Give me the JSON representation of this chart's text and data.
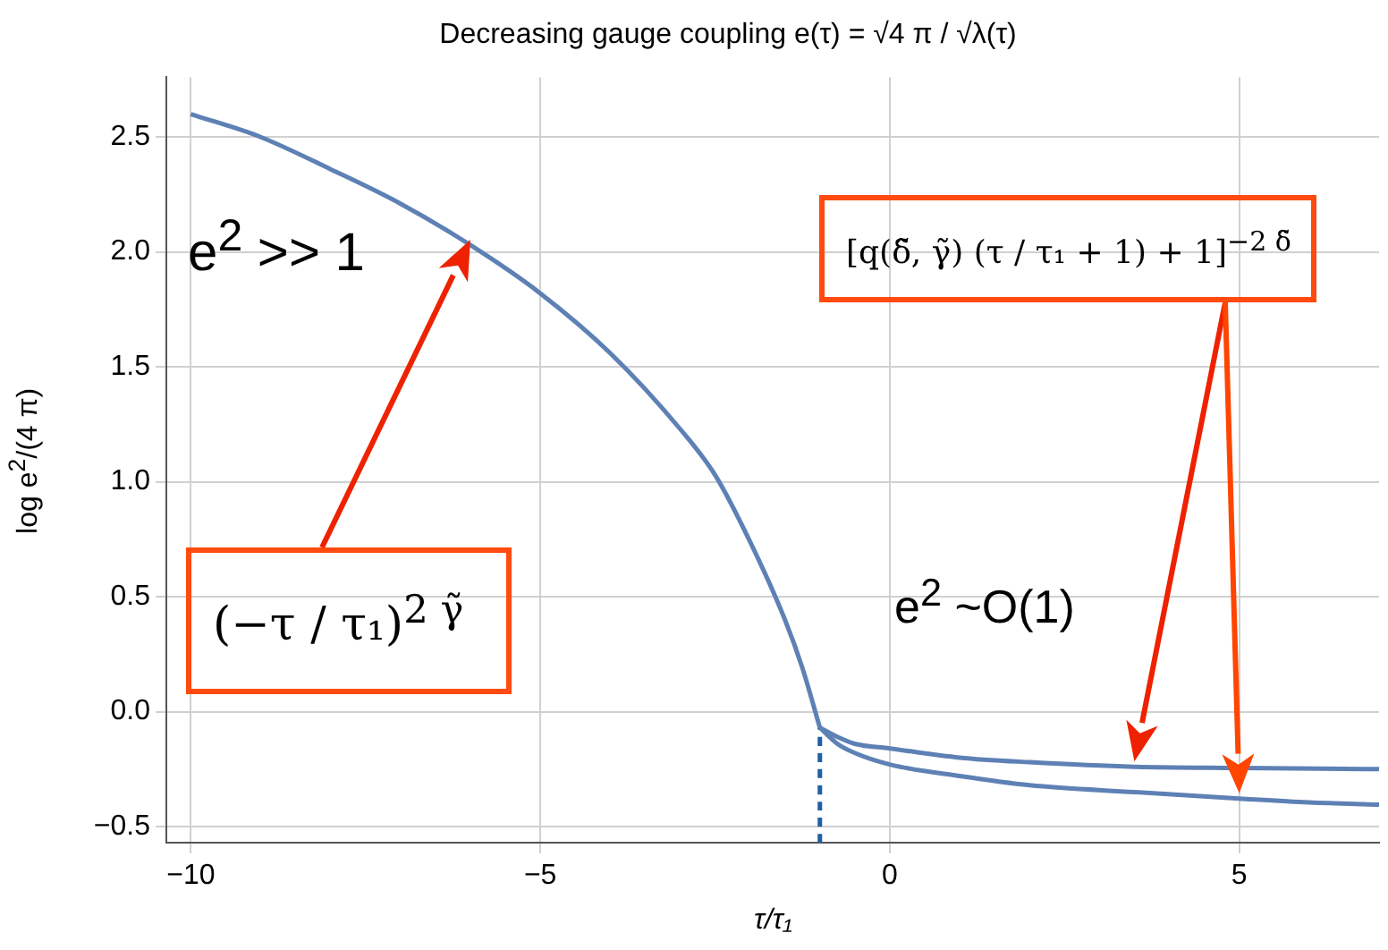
{
  "chart_data": {
    "type": "line",
    "title": "Decreasing gauge coupling e(τ) = √4 π / √λ(τ)",
    "xlabel": "τ/τ₁",
    "ylabel": "log e$^{2}$/(4 π)",
    "xlim": [
      -10.35,
      7
    ],
    "xticks": [
      {
        "value": -10,
        "label": "−10"
      },
      {
        "value": -5,
        "label": "−5"
      },
      0,
      5
    ],
    "ylim": [
      -0.57,
      2.76
    ],
    "yticks": [
      {
        "value": -0.5,
        "label": "−0.5"
      },
      {
        "value": 0,
        "label": "0.0"
      },
      0.5,
      {
        "value": 1,
        "label": "1.0"
      },
      1.5,
      {
        "value": 2,
        "label": "2.0"
      },
      2.5
    ],
    "grid": true,
    "legend": false,
    "marker": "none",
    "line_style": "solid",
    "series": [
      {
        "color": "#5e81b5",
        "x": [
          -10,
          -9,
          -8,
          -7,
          -6,
          -5,
          -4,
          -3,
          -2.5,
          -2,
          -1.5,
          -1.25,
          -1
        ],
        "values": [
          2.6,
          2.5,
          2.36,
          2.21,
          2.03,
          1.82,
          1.56,
          1.23,
          1.03,
          0.74,
          0.4,
          0.19,
          -0.07
        ]
      },
      {
        "color": "#5e81b5",
        "x": [
          -1,
          -0.75,
          -0.5,
          0,
          1,
          2,
          3.5,
          5,
          7
        ],
        "values": [
          -0.07,
          -0.11,
          -0.14,
          -0.16,
          -0.2,
          -0.22,
          -0.24,
          -0.245,
          -0.25
        ]
      },
      {
        "color": "#5e81b5",
        "x": [
          -1,
          -0.75,
          -0.5,
          0,
          1,
          2,
          3.5,
          5,
          6,
          7
        ],
        "values": [
          -0.07,
          -0.14,
          -0.18,
          -0.23,
          -0.28,
          -0.32,
          -0.35,
          -0.378,
          -0.395,
          -0.405
        ]
      },
      {
        "color": "#1f5fa8",
        "line_style": "dashed",
        "x": [
          -1,
          -1
        ],
        "values": [
          -0.57,
          -0.07
        ]
      }
    ],
    "annotations": [
      "e$^{2}$ >> 1",
      "(−τ / τ₁)$^{2 γ̃}$",
      "e$^{2}$ ~O(1)",
      "[q(δ̃, γ̃) (τ / τ₁ + 1) + 1]$^{−2 δ̃}$"
    ]
  }
}
